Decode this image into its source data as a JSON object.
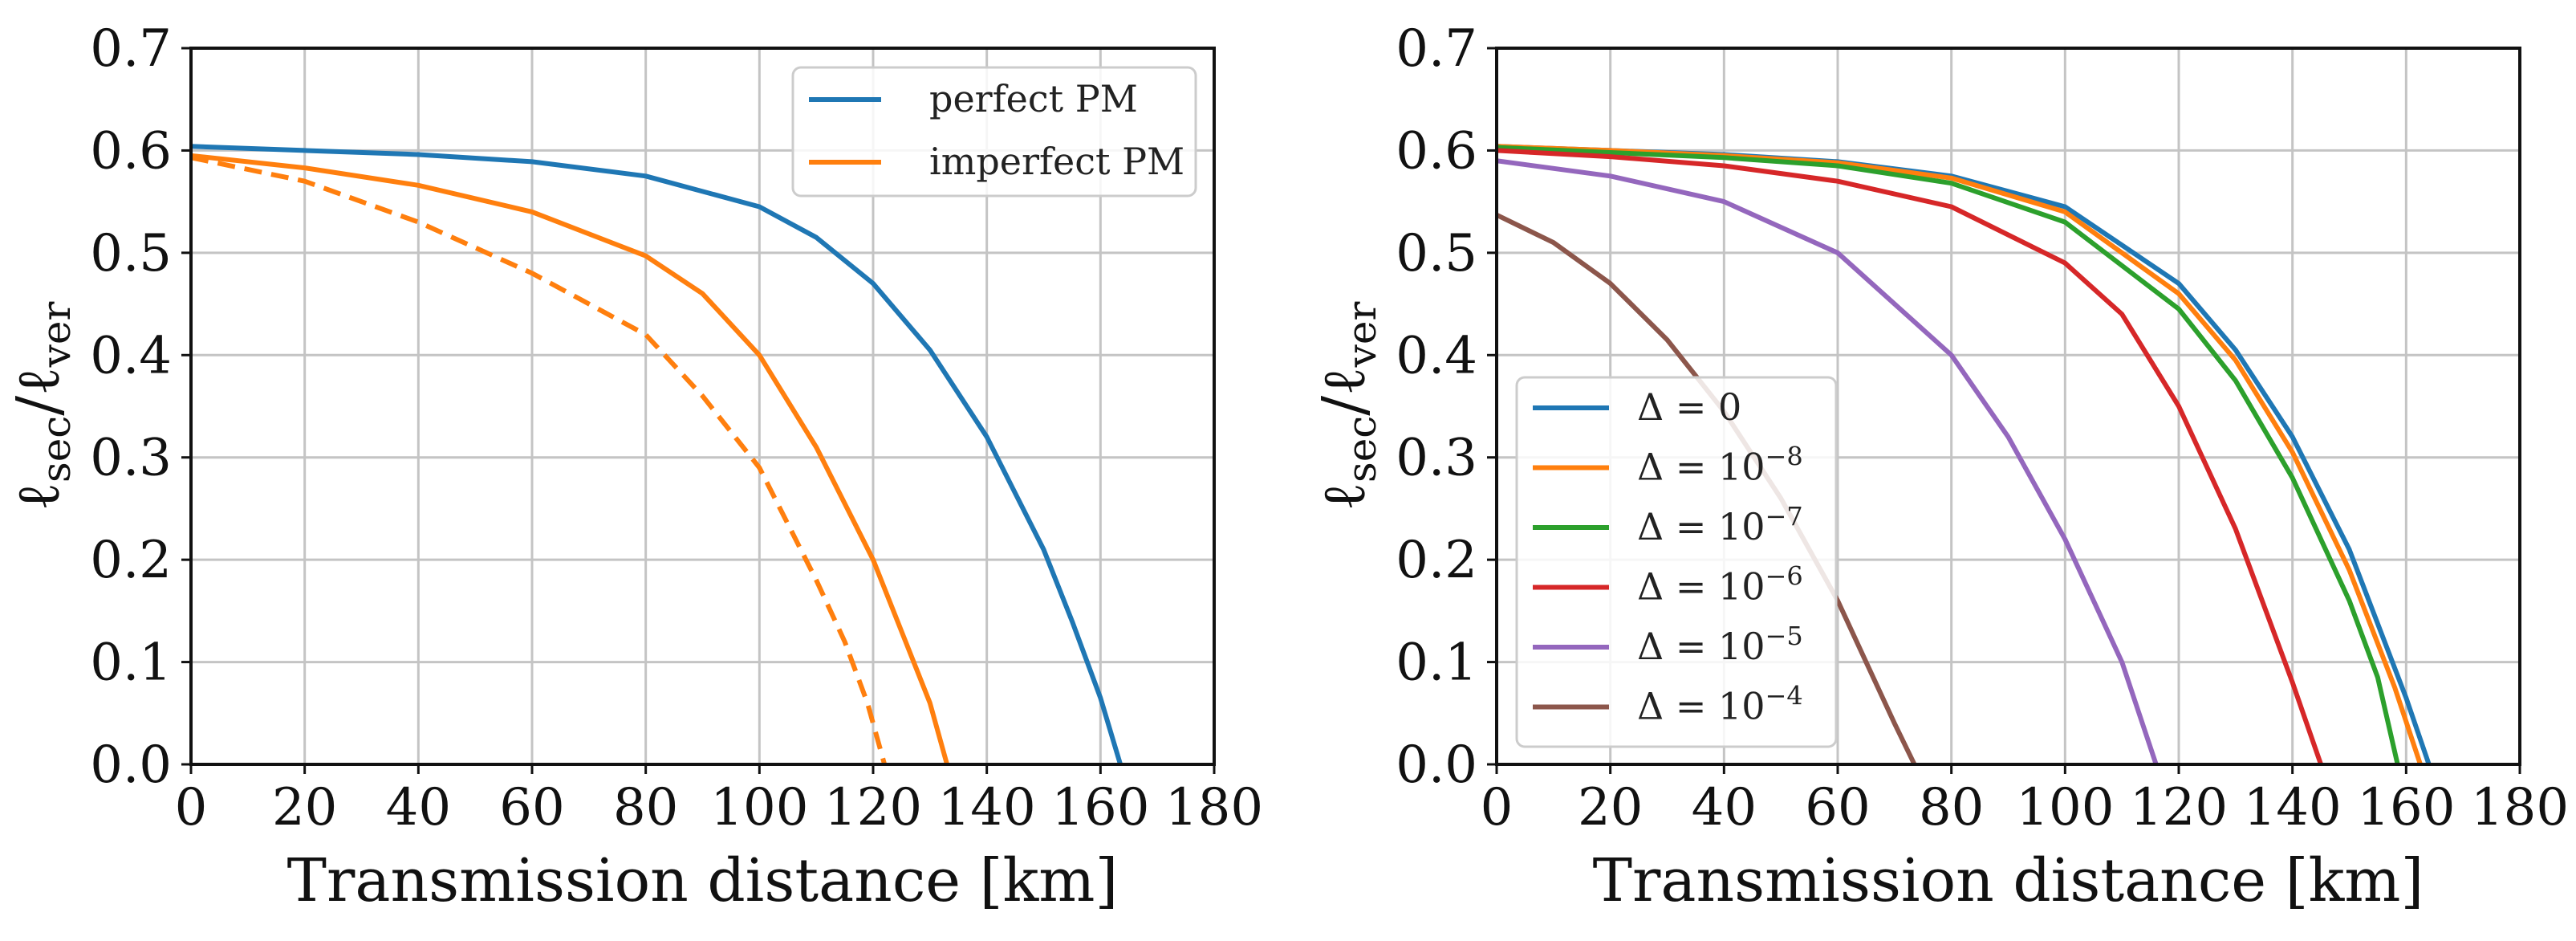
{
  "chart_data": [
    {
      "type": "line",
      "xlabel": "Transmission distance [km]",
      "ylabel": "ℓsec/ℓver",
      "ylabel_main": "ℓ",
      "ylabel_sub1": "sec",
      "ylabel_slash": "/ℓ",
      "ylabel_sub2": "ver",
      "xlim": [
        0,
        180
      ],
      "ylim": [
        0.0,
        0.7
      ],
      "xticks": [
        0,
        20,
        40,
        60,
        80,
        100,
        120,
        140,
        160,
        180
      ],
      "yticks": [
        "0.0",
        "0.1",
        "0.2",
        "0.3",
        "0.4",
        "0.5",
        "0.6",
        "0.7"
      ],
      "grid": true,
      "legend_position": "top-right",
      "series": [
        {
          "name": "perfect PM",
          "color": "#1f77b4",
          "style": "solid",
          "in_legend": true,
          "x": [
            0,
            20,
            40,
            60,
            80,
            100,
            110,
            120,
            130,
            140,
            150,
            155,
            160,
            163.5
          ],
          "y": [
            0.604,
            0.6,
            0.596,
            0.589,
            0.575,
            0.545,
            0.515,
            0.47,
            0.405,
            0.32,
            0.21,
            0.14,
            0.065,
            0.0
          ]
        },
        {
          "name": "imperfect PM",
          "color": "#ff7f0e",
          "style": "solid",
          "in_legend": true,
          "x": [
            0,
            20,
            40,
            60,
            80,
            90,
            100,
            110,
            120,
            125,
            130,
            133
          ],
          "y": [
            0.595,
            0.583,
            0.566,
            0.54,
            0.497,
            0.46,
            0.4,
            0.31,
            0.2,
            0.13,
            0.06,
            0.0
          ]
        },
        {
          "name": "",
          "color": "#ff7f0e",
          "style": "dashed",
          "in_legend": false,
          "x": [
            0,
            20,
            40,
            60,
            80,
            90,
            100,
            110,
            115,
            119,
            122
          ],
          "y": [
            0.593,
            0.57,
            0.53,
            0.48,
            0.42,
            0.36,
            0.29,
            0.18,
            0.12,
            0.06,
            0.0
          ]
        }
      ]
    },
    {
      "type": "line",
      "xlabel": "Transmission distance [km]",
      "ylabel": "ℓsec/ℓver",
      "ylabel_main": "ℓ",
      "ylabel_sub1": "sec",
      "ylabel_slash": "/ℓ",
      "ylabel_sub2": "ver",
      "xlim": [
        0,
        180
      ],
      "ylim": [
        0.0,
        0.7
      ],
      "xticks": [
        0,
        20,
        40,
        60,
        80,
        100,
        120,
        140,
        160,
        180
      ],
      "yticks": [
        "0.0",
        "0.1",
        "0.2",
        "0.3",
        "0.4",
        "0.5",
        "0.6",
        "0.7"
      ],
      "grid": true,
      "legend_position": "bottom-left",
      "series": [
        {
          "name": "Δ = 0",
          "base": "Δ = 0",
          "exp": "",
          "color": "#1f77b4",
          "style": "solid",
          "in_legend": true,
          "x": [
            0,
            20,
            40,
            60,
            80,
            100,
            120,
            130,
            140,
            150,
            160,
            164
          ],
          "y": [
            0.604,
            0.6,
            0.596,
            0.589,
            0.575,
            0.545,
            0.47,
            0.405,
            0.32,
            0.21,
            0.065,
            0.0
          ]
        },
        {
          "name": "Δ = 10−8",
          "base": "Δ = 10",
          "exp": "−8",
          "color": "#ff7f0e",
          "style": "solid",
          "in_legend": true,
          "x": [
            0,
            20,
            40,
            60,
            80,
            100,
            120,
            130,
            140,
            150,
            158,
            162.5
          ],
          "y": [
            0.604,
            0.6,
            0.595,
            0.588,
            0.573,
            0.54,
            0.46,
            0.395,
            0.305,
            0.19,
            0.075,
            0.0
          ]
        },
        {
          "name": "Δ = 10−7",
          "base": "Δ = 10",
          "exp": "−7",
          "color": "#2ca02c",
          "style": "solid",
          "in_legend": true,
          "x": [
            0,
            20,
            40,
            60,
            80,
            100,
            120,
            130,
            140,
            150,
            155,
            158.5
          ],
          "y": [
            0.603,
            0.598,
            0.593,
            0.585,
            0.568,
            0.53,
            0.445,
            0.375,
            0.28,
            0.16,
            0.085,
            0.0
          ]
        },
        {
          "name": "Δ = 10−6",
          "base": "Δ = 10",
          "exp": "−6",
          "color": "#d62728",
          "style": "solid",
          "in_legend": true,
          "x": [
            0,
            20,
            40,
            60,
            80,
            100,
            110,
            120,
            130,
            140,
            145
          ],
          "y": [
            0.6,
            0.594,
            0.585,
            0.57,
            0.545,
            0.49,
            0.44,
            0.35,
            0.23,
            0.08,
            0.0
          ]
        },
        {
          "name": "Δ = 10−5",
          "base": "Δ = 10",
          "exp": "−5",
          "color": "#9467bd",
          "style": "solid",
          "in_legend": true,
          "x": [
            0,
            20,
            40,
            60,
            80,
            90,
            100,
            105,
            110,
            116
          ],
          "y": [
            0.59,
            0.575,
            0.55,
            0.5,
            0.4,
            0.32,
            0.22,
            0.16,
            0.1,
            0.0
          ]
        },
        {
          "name": "Δ = 10−4",
          "base": "Δ = 10",
          "exp": "−4",
          "color": "#8c564b",
          "style": "solid",
          "in_legend": true,
          "x": [
            0,
            10,
            20,
            30,
            40,
            50,
            60,
            65,
            70,
            73.5
          ],
          "y": [
            0.537,
            0.51,
            0.47,
            0.415,
            0.345,
            0.26,
            0.16,
            0.1,
            0.04,
            0.0
          ]
        }
      ]
    }
  ]
}
